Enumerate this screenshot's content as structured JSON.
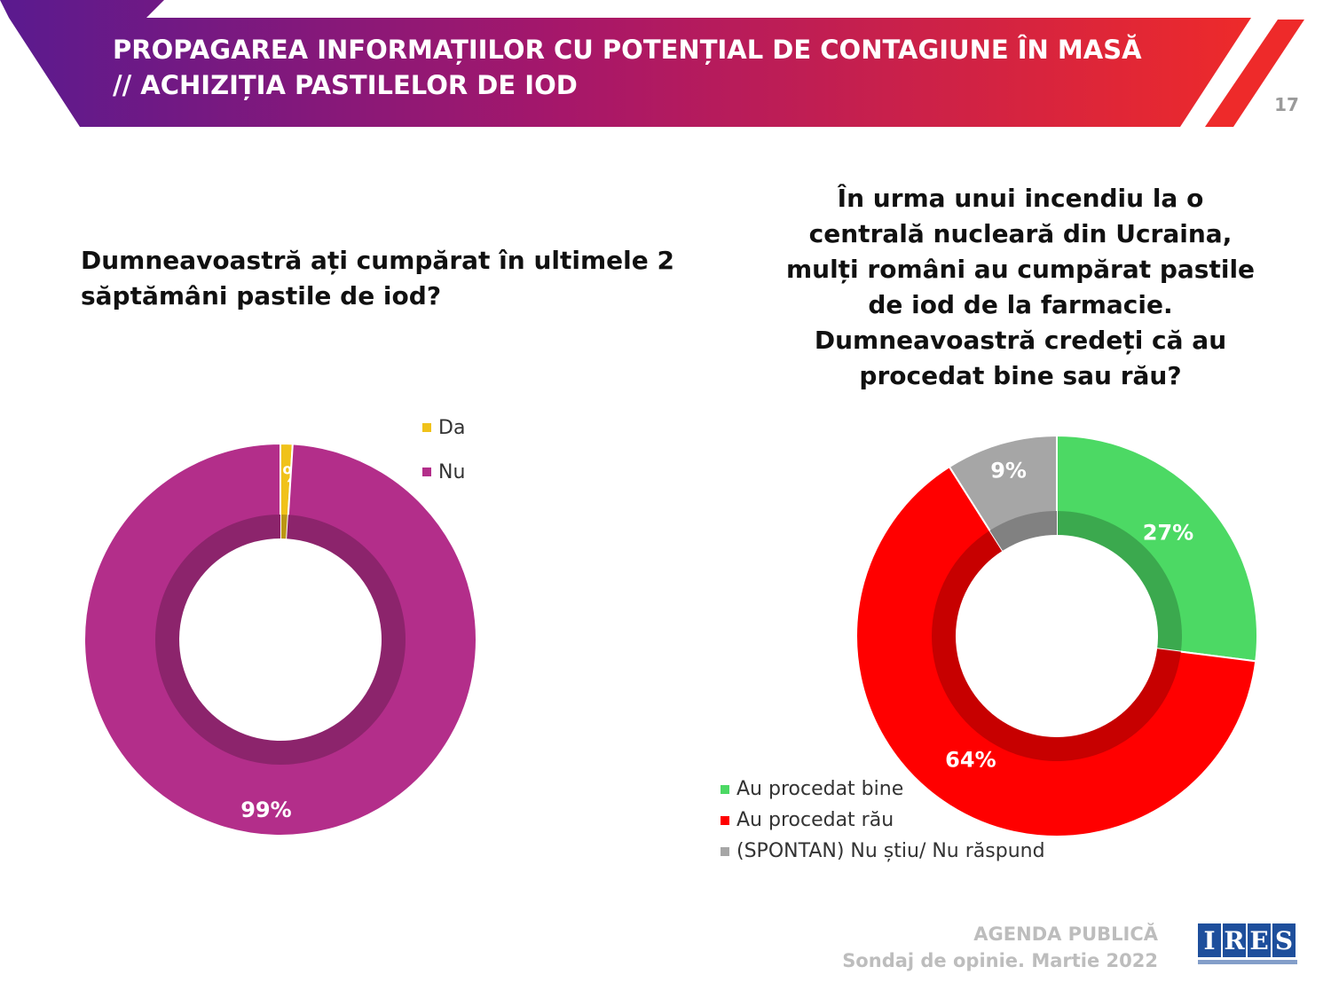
{
  "header": {
    "title_line1": "PROPAGAREA INFORMAȚIILOR CU POTENȚIAL DE CONTAGIUNE ÎN MASĂ",
    "title_line2": "// ACHIZIȚIA PASTILELOR DE IOD",
    "page_number": "17"
  },
  "footer": {
    "line1": "AGENDA PUBLICĂ",
    "line2": "Sondaj de opinie. Martie 2022",
    "logo_letters": [
      "I",
      "R",
      "E",
      "S"
    ]
  },
  "chart_data": [
    {
      "type": "pie",
      "variant": "donut",
      "title_lines": [
        "Dumneavoastră ați cumpărat în ultimele 2",
        "săptămâni pastile de iod?"
      ],
      "categories": [
        "Da",
        "Nu"
      ],
      "values": [
        1,
        99
      ],
      "labels": [
        "1%",
        "99%"
      ],
      "colors": [
        "#f0c21a",
        "#b32e8a"
      ],
      "legend_position": "top-right"
    },
    {
      "type": "pie",
      "variant": "donut",
      "title_lines": [
        "În urma unui incendiu la o",
        "centrală nucleară din Ucraina,",
        "mulți români au cumpărat pastile",
        "de iod de la farmacie.",
        "Dumneavoastră credeți că au",
        "procedat bine sau rău?"
      ],
      "categories": [
        "Au procedat bine",
        "Au procedat rău",
        "(SPONTAN) Nu știu/ Nu răspund"
      ],
      "values": [
        27,
        64,
        9
      ],
      "labels": [
        "27%",
        "64%",
        "9%"
      ],
      "colors": [
        "#4cd964",
        "#ff0000",
        "#a6a6a6"
      ],
      "legend_position": "bottom-left"
    }
  ]
}
